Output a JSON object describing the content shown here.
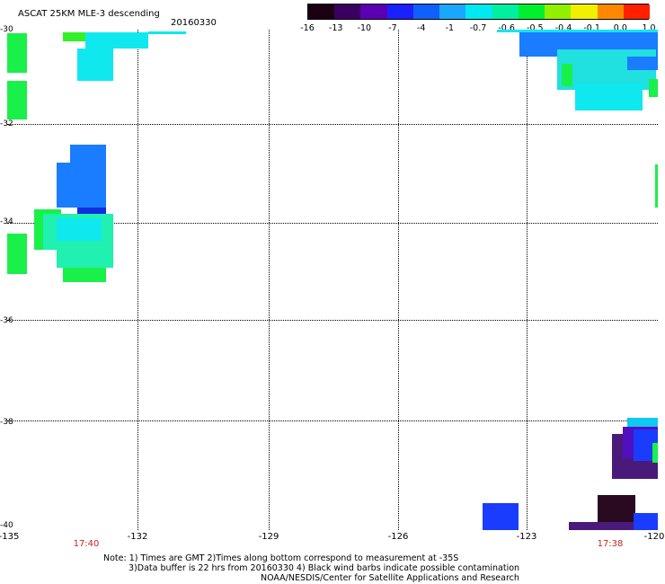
{
  "title": "ASCAT 25KM MLE-3 descending",
  "date": "20160330",
  "colorbar": {
    "ticks": [
      "-16",
      "-13",
      "-10",
      "-7",
      "-4",
      "-1",
      "-0.7",
      "-0.6",
      "-0.5",
      "-0.4",
      "-0.1",
      "0.0",
      "1.0"
    ],
    "colors": [
      "#1a0010",
      "#3a0060",
      "#5a00b0",
      "#1a20ff",
      "#1060ff",
      "#1aa8ff",
      "#00e8f0",
      "#00f0a0",
      "#00f030",
      "#90f000",
      "#f0f000",
      "#ff8800",
      "#ff2000"
    ]
  },
  "axes": {
    "y_labels": [
      "-30",
      "-32",
      "-34",
      "-36",
      "-38",
      "-40"
    ],
    "x_labels": [
      "-135",
      "-132",
      "-129",
      "-126",
      "-123",
      "-120"
    ]
  },
  "times": [
    "17:40",
    "17:38"
  ],
  "notes": {
    "line1": "Note: 1) Times are GMT 2)Times along bottom correspond to measurement at -35S",
    "line2": "3)Data buffer is 22 hrs from 20160330 4) Black wind barbs indicate possible contamination",
    "line3": "NOAA/NESDIS/Center for Satellite Applications and Research"
  }
}
